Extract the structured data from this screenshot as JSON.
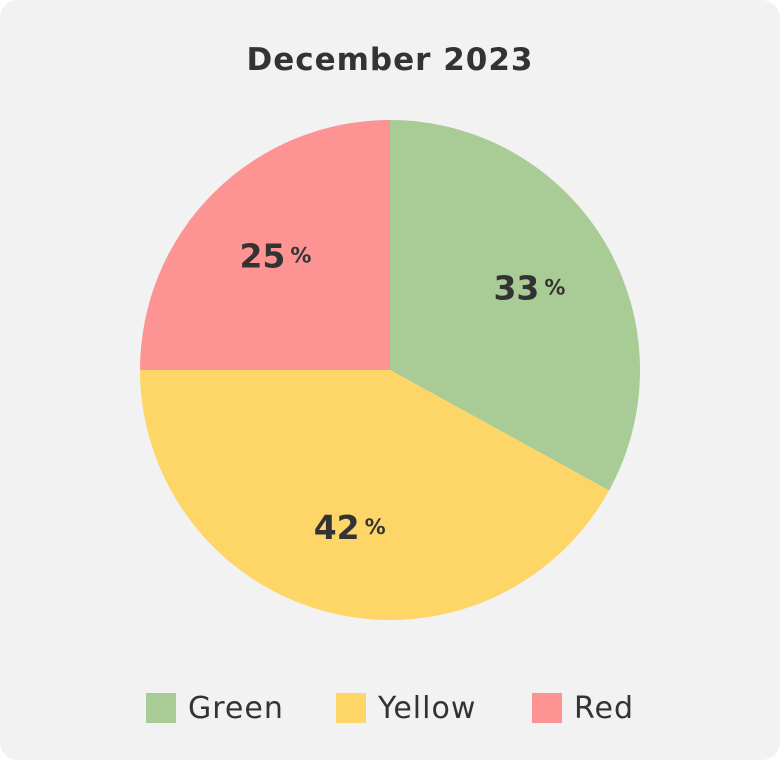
{
  "chart_data": {
    "type": "pie",
    "title": "December 2023",
    "slices": [
      {
        "name": "Green",
        "value": 33,
        "label": "33",
        "unit": "%",
        "color": "#a9cb95"
      },
      {
        "name": "Yellow",
        "value": 42,
        "label": "42",
        "unit": "%",
        "color": "#fdd667"
      },
      {
        "name": "Red",
        "value": 25,
        "label": "25",
        "unit": "%",
        "color": "#fe9393"
      }
    ],
    "start_angle": "12-o'clock",
    "direction": "clockwise",
    "legend_position": "bottom"
  },
  "colors": {
    "background": "#f2f2f3",
    "text": "#333333"
  }
}
